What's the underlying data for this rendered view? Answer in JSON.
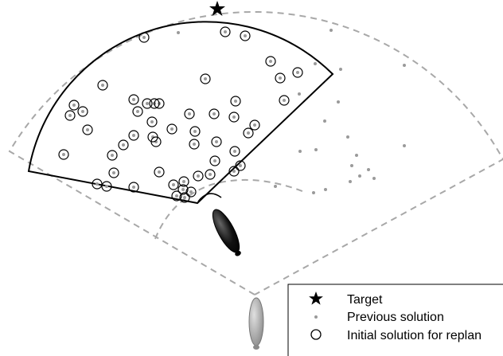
{
  "legend": {
    "target": "Target",
    "previous": "Previous solution",
    "initial": "Initial solution for replan"
  },
  "colors": {
    "background": "#ffffff",
    "dashed": "#a8a8a8",
    "previous_dot": "#9a9a9a",
    "circle": "#000000",
    "sector": "#000000",
    "vehicle_new": "#111111",
    "vehicle_old": "#a8a8a8"
  },
  "icons": {
    "target": "star-icon",
    "previous": "dot-icon",
    "initial": "hollow-circle-icon"
  }
}
